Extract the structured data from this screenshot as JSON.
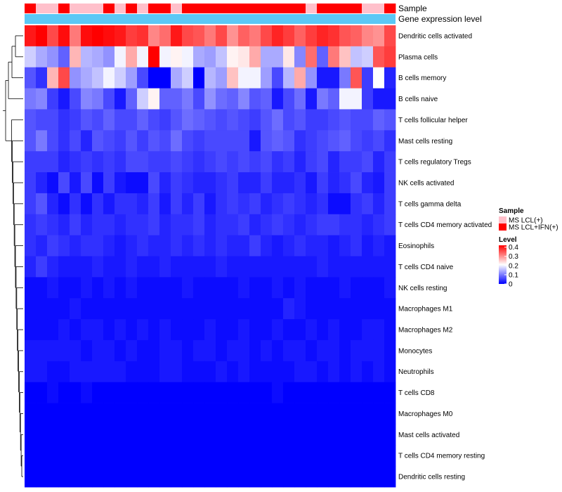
{
  "chart_data": {
    "type": "heatmap",
    "annotations": [
      {
        "name": "Sample"
      },
      {
        "name": "Gene expression level"
      }
    ],
    "rows": [
      "Dendritic cells activated",
      "Plasma cells",
      "B cells memory",
      "B cells naive",
      "T cells follicular helper",
      "Mast cells resting",
      "T cells regulatory  Tregs",
      "NK cells activated",
      "T cells gamma delta",
      "T cells CD4 memory activated",
      "Eosinophils",
      "T cells CD4 naive",
      "NK cells resting",
      "Macrophages M1",
      "Macrophages M2",
      "Monocytes",
      "Neutrophils",
      "T cells CD8",
      "Macrophages M0",
      "Mast cells activated",
      "T cells CD4 memory resting",
      "Dendritic cells resting"
    ],
    "sample_groups": [
      1,
      0,
      0,
      1,
      0,
      0,
      0,
      1,
      0,
      1,
      0,
      1,
      1,
      0,
      1,
      1,
      1,
      1,
      1,
      1,
      1,
      1,
      1,
      1,
      1,
      0,
      1,
      1,
      1,
      1,
      0,
      0,
      1
    ],
    "values": [
      [
        0.4,
        0.42,
        0.36,
        0.41,
        0.32,
        0.41,
        0.42,
        0.41,
        0.4,
        0.37,
        0.38,
        0.31,
        0.33,
        0.4,
        0.36,
        0.35,
        0.32,
        0.36,
        0.3,
        0.34,
        0.32,
        0.36,
        0.39,
        0.37,
        0.34,
        0.37,
        0.39,
        0.38,
        0.35,
        0.34,
        0.31,
        0.3,
        0.36
      ],
      [
        0.17,
        0.14,
        0.12,
        0.08,
        0.27,
        0.15,
        0.14,
        0.12,
        0.2,
        0.28,
        0.2,
        0.42,
        0.2,
        0.22,
        0.2,
        0.14,
        0.13,
        0.16,
        0.22,
        0.23,
        0.28,
        0.14,
        0.14,
        0.23,
        0.11,
        0.33,
        0.08,
        0.32,
        0.26,
        0.16,
        0.17,
        0.35,
        0.37
      ],
      [
        0.07,
        0.04,
        0.27,
        0.36,
        0.12,
        0.14,
        0.16,
        0.2,
        0.17,
        0.13,
        0.06,
        0.0,
        0.0,
        0.14,
        0.17,
        0.0,
        0.15,
        0.13,
        0.26,
        0.2,
        0.2,
        0.13,
        0.06,
        0.15,
        0.28,
        0.12,
        0.02,
        0.02,
        0.1,
        0.35,
        0.05,
        0.21,
        0.03
      ],
      [
        0.1,
        0.11,
        0.05,
        0.02,
        0.06,
        0.11,
        0.1,
        0.06,
        0.02,
        0.08,
        0.17,
        0.22,
        0.08,
        0.08,
        0.1,
        0.06,
        0.12,
        0.09,
        0.08,
        0.11,
        0.07,
        0.08,
        0.02,
        0.06,
        0.09,
        0.02,
        0.1,
        0.08,
        0.2,
        0.2,
        0.05,
        0.02,
        0.02
      ],
      [
        0.07,
        0.06,
        0.06,
        0.04,
        0.05,
        0.07,
        0.06,
        0.08,
        0.06,
        0.06,
        0.08,
        0.06,
        0.05,
        0.07,
        0.09,
        0.08,
        0.07,
        0.06,
        0.07,
        0.06,
        0.05,
        0.07,
        0.09,
        0.06,
        0.07,
        0.05,
        0.05,
        0.06,
        0.07,
        0.06,
        0.06,
        0.08,
        0.07
      ],
      [
        0.07,
        0.1,
        0.06,
        0.04,
        0.06,
        0.03,
        0.07,
        0.06,
        0.05,
        0.07,
        0.05,
        0.07,
        0.06,
        0.09,
        0.06,
        0.05,
        0.06,
        0.06,
        0.06,
        0.06,
        0.02,
        0.07,
        0.08,
        0.07,
        0.04,
        0.05,
        0.06,
        0.07,
        0.08,
        0.06,
        0.05,
        0.06,
        0.04
      ],
      [
        0.05,
        0.05,
        0.05,
        0.03,
        0.04,
        0.05,
        0.04,
        0.05,
        0.04,
        0.06,
        0.06,
        0.05,
        0.05,
        0.06,
        0.05,
        0.04,
        0.05,
        0.06,
        0.05,
        0.06,
        0.05,
        0.06,
        0.04,
        0.05,
        0.03,
        0.05,
        0.06,
        0.03,
        0.05,
        0.05,
        0.06,
        0.03,
        0.05
      ],
      [
        0.05,
        0.03,
        0.01,
        0.06,
        0.02,
        0.06,
        0.01,
        0.05,
        0.02,
        0.01,
        0.01,
        0.06,
        0.03,
        0.05,
        0.04,
        0.03,
        0.03,
        0.04,
        0.05,
        0.03,
        0.03,
        0.05,
        0.03,
        0.03,
        0.04,
        0.02,
        0.05,
        0.03,
        0.04,
        0.06,
        0.03,
        0.02,
        0.05
      ],
      [
        0.05,
        0.07,
        0.03,
        0.01,
        0.04,
        0.01,
        0.04,
        0.02,
        0.04,
        0.04,
        0.03,
        0.05,
        0.02,
        0.05,
        0.03,
        0.05,
        0.02,
        0.04,
        0.05,
        0.04,
        0.05,
        0.03,
        0.04,
        0.05,
        0.04,
        0.03,
        0.04,
        0.01,
        0.01,
        0.04,
        0.05,
        0.03,
        0.05
      ],
      [
        0.04,
        0.05,
        0.04,
        0.03,
        0.05,
        0.03,
        0.04,
        0.04,
        0.03,
        0.04,
        0.04,
        0.05,
        0.03,
        0.04,
        0.04,
        0.05,
        0.03,
        0.04,
        0.04,
        0.05,
        0.03,
        0.04,
        0.05,
        0.04,
        0.03,
        0.04,
        0.05,
        0.05,
        0.04,
        0.04,
        0.03,
        0.04,
        0.05
      ],
      [
        0.04,
        0.03,
        0.05,
        0.04,
        0.03,
        0.04,
        0.04,
        0.03,
        0.02,
        0.03,
        0.04,
        0.03,
        0.03,
        0.04,
        0.03,
        0.04,
        0.03,
        0.04,
        0.03,
        0.03,
        0.05,
        0.03,
        0.02,
        0.03,
        0.04,
        0.03,
        0.03,
        0.02,
        0.03,
        0.04,
        0.02,
        0.03,
        0.02
      ],
      [
        0.03,
        0.05,
        0.03,
        0.02,
        0.02,
        0.02,
        0.03,
        0.02,
        0.02,
        0.03,
        0.02,
        0.02,
        0.03,
        0.02,
        0.02,
        0.02,
        0.02,
        0.03,
        0.02,
        0.02,
        0.02,
        0.02,
        0.02,
        0.02,
        0.02,
        0.02,
        0.03,
        0.02,
        0.02,
        0.02,
        0.02,
        0.02,
        0.02
      ],
      [
        0.01,
        0.01,
        0.02,
        0.01,
        0.01,
        0.02,
        0.01,
        0.02,
        0.01,
        0.02,
        0.01,
        0.01,
        0.01,
        0.01,
        0.02,
        0.01,
        0.01,
        0.01,
        0.01,
        0.02,
        0.01,
        0.01,
        0.02,
        0.01,
        0.02,
        0.01,
        0.01,
        0.01,
        0.02,
        0.01,
        0.01,
        0.01,
        0.02
      ],
      [
        0.01,
        0.01,
        0.01,
        0.01,
        0.02,
        0.01,
        0.01,
        0.01,
        0.01,
        0.01,
        0.01,
        0.01,
        0.01,
        0.01,
        0.01,
        0.01,
        0.01,
        0.01,
        0.01,
        0.01,
        0.01,
        0.01,
        0.01,
        0.03,
        0.02,
        0.01,
        0.01,
        0.01,
        0.01,
        0.01,
        0.01,
        0.01,
        0.01
      ],
      [
        0.01,
        0.01,
        0.01,
        0.02,
        0.01,
        0.02,
        0.02,
        0.01,
        0.02,
        0.01,
        0.02,
        0.01,
        0.02,
        0.01,
        0.01,
        0.01,
        0.02,
        0.01,
        0.01,
        0.02,
        0.01,
        0.01,
        0.02,
        0.01,
        0.01,
        0.02,
        0.01,
        0.02,
        0.01,
        0.01,
        0.02,
        0.02,
        0.01
      ],
      [
        0.02,
        0.02,
        0.02,
        0.02,
        0.02,
        0.01,
        0.02,
        0.02,
        0.01,
        0.02,
        0.01,
        0.01,
        0.02,
        0.02,
        0.01,
        0.02,
        0.02,
        0.01,
        0.02,
        0.02,
        0.01,
        0.02,
        0.01,
        0.02,
        0.02,
        0.01,
        0.02,
        0.02,
        0.01,
        0.02,
        0.02,
        0.02,
        0.01
      ],
      [
        0.02,
        0.02,
        0.01,
        0.01,
        0.02,
        0.02,
        0.02,
        0.02,
        0.02,
        0.01,
        0.01,
        0.01,
        0.02,
        0.02,
        0.01,
        0.01,
        0.01,
        0.02,
        0.01,
        0.02,
        0.01,
        0.01,
        0.01,
        0.01,
        0.02,
        0.02,
        0.01,
        0.02,
        0.01,
        0.02,
        0.01,
        0.02,
        0.01
      ],
      [
        0.0,
        0.0,
        0.01,
        0.0,
        0.0,
        0.01,
        0.0,
        0.0,
        0.0,
        0.0,
        0.0,
        0.0,
        0.0,
        0.0,
        0.0,
        0.0,
        0.0,
        0.0,
        0.0,
        0.0,
        0.0,
        0.0,
        0.01,
        0.0,
        0.0,
        0.0,
        0.0,
        0.0,
        0.0,
        0.0,
        0.0,
        0.0,
        0.0
      ],
      [
        0.0,
        0.0,
        0.0,
        0.0,
        0.0,
        0.0,
        0.0,
        0.0,
        0.0,
        0.0,
        0.0,
        0.0,
        0.0,
        0.0,
        0.0,
        0.0,
        0.0,
        0.0,
        0.0,
        0.0,
        0.0,
        0.0,
        0.0,
        0.0,
        0.0,
        0.0,
        0.0,
        0.0,
        0.0,
        0.0,
        0.0,
        0.0,
        0.0
      ],
      [
        0.0,
        0.0,
        0.0,
        0.0,
        0.0,
        0.0,
        0.0,
        0.0,
        0.0,
        0.0,
        0.0,
        0.0,
        0.0,
        0.0,
        0.0,
        0.0,
        0.0,
        0.0,
        0.0,
        0.0,
        0.0,
        0.0,
        0.0,
        0.0,
        0.0,
        0.0,
        0.0,
        0.0,
        0.0,
        0.0,
        0.0,
        0.0,
        0.0
      ],
      [
        0.0,
        0.0,
        0.0,
        0.0,
        0.0,
        0.0,
        0.0,
        0.0,
        0.0,
        0.0,
        0.0,
        0.0,
        0.0,
        0.0,
        0.0,
        0.0,
        0.0,
        0.0,
        0.0,
        0.0,
        0.0,
        0.0,
        0.0,
        0.0,
        0.0,
        0.0,
        0.0,
        0.0,
        0.0,
        0.0,
        0.0,
        0.0,
        0.0
      ],
      [
        0.0,
        0.0,
        0.0,
        0.0,
        0.0,
        0.0,
        0.0,
        0.0,
        0.0,
        0.0,
        0.0,
        0.0,
        0.0,
        0.0,
        0.0,
        0.0,
        0.0,
        0.0,
        0.0,
        0.0,
        0.0,
        0.0,
        0.0,
        0.0,
        0.0,
        0.0,
        0.0,
        0.0,
        0.0,
        0.0,
        0.0,
        0.0,
        0.0
      ]
    ],
    "value_range": [
      0,
      0.42
    ],
    "legends": {
      "sample": {
        "title": "Sample",
        "items": [
          {
            "label": "MS LCL(+)",
            "color": "#ffc0cb"
          },
          {
            "label": "MS LCL+IFN(+)",
            "color": "#ff0000"
          }
        ]
      },
      "level": {
        "title": "Level",
        "ticks": [
          {
            "label": "0.4",
            "value": 0.4
          },
          {
            "label": "0.3",
            "value": 0.3
          },
          {
            "label": "0.2",
            "value": 0.2
          },
          {
            "label": "0.1",
            "value": 0.1
          },
          {
            "label": "0",
            "value": 0
          }
        ]
      }
    },
    "colors": {
      "low": "#0000ff",
      "mid": "#ffffff",
      "high": "#ff0000",
      "gene_expression": "#5bc8f5"
    },
    "legend_position": "right"
  }
}
